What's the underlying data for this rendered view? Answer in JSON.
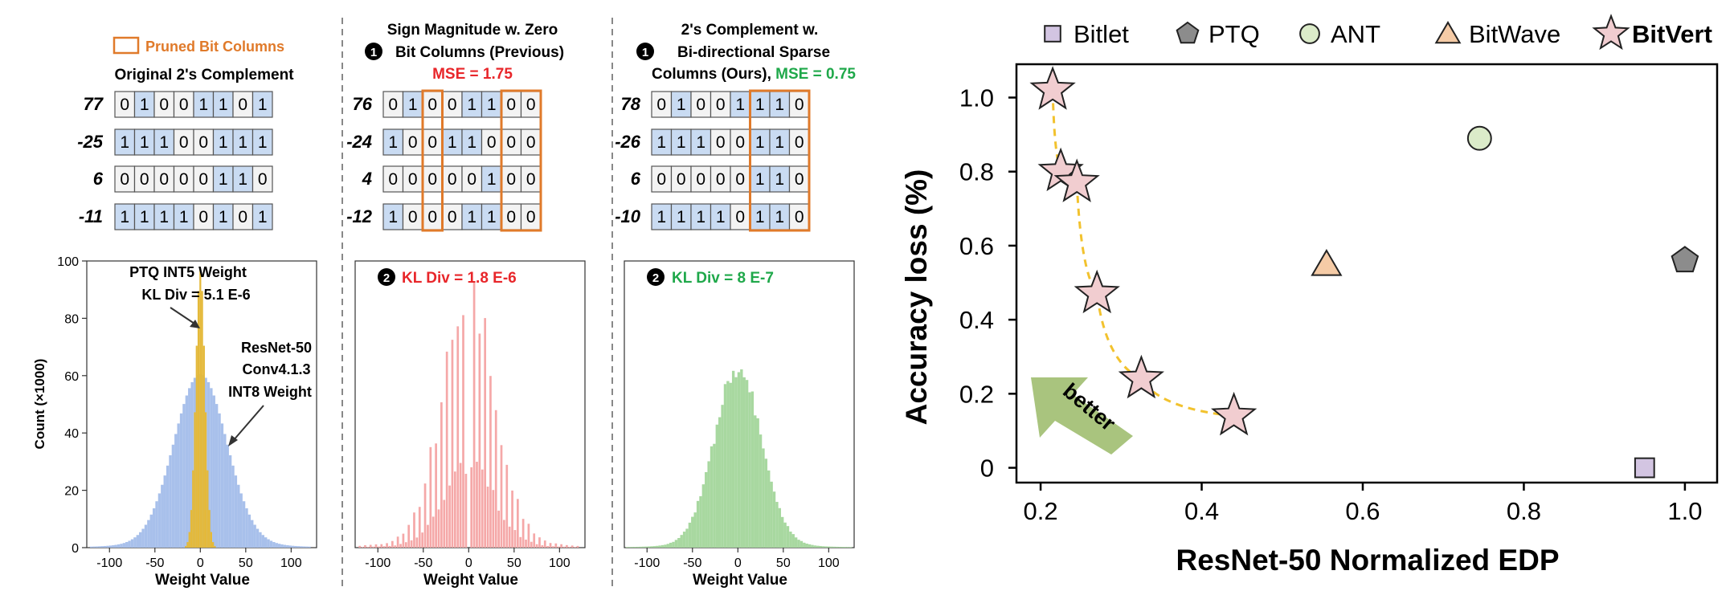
{
  "colors": {
    "blue_cell": "#c9dbf2",
    "white_cell": "#f3f3f3",
    "cell_stroke": "#555555",
    "pruned": "#e07a2a",
    "mse_red": "#e8262a",
    "mse_green": "#1fa84a",
    "hist_blue": "#a8c0eb",
    "hist_yellow": "#e4b93a",
    "hist_red": "#f5a8a8",
    "hist_green": "#a8d8a0",
    "star_fill": "#f1cdd0",
    "pareto": "#f2c22e",
    "better_arrow": "#a9c47e",
    "bitlet": "#d3c5e2",
    "ptq": "#8c8c8c",
    "ant": "#dbebc9",
    "bitwave": "#f5cba6"
  },
  "left": {
    "legend_label": "Pruned Bit Columns",
    "panels": [
      {
        "title_lines": [
          "Original 2's Complement"
        ],
        "mse_label": "",
        "rows": [
          {
            "value": "77",
            "bits": "01001101"
          },
          {
            "value": "-25",
            "bits": "11100111"
          },
          {
            "value": "6",
            "bits": "00000110"
          },
          {
            "value": "-11",
            "bits": "11110101"
          }
        ],
        "pruned_columns": [],
        "hist": {
          "badge": "",
          "kl_label": "",
          "ylabel": "Count (×1000)",
          "xlabel": "Weight Value",
          "yticks": [
            "0",
            "20",
            "40",
            "60",
            "80",
            "100"
          ],
          "xticks": [
            "-100",
            "-50",
            "0",
            "50",
            "100"
          ],
          "annotations": {
            "ptq_line1": "PTQ INT5 Weight",
            "ptq_line2": "KL Div = 5.1 E-6",
            "resnet_line1": "ResNet-50",
            "resnet_line2": "Conv4.1.3",
            "resnet_line3": "INT8 Weight"
          }
        }
      },
      {
        "title_lines": [
          "Sign Magnitude w. Zero",
          "Bit Columns (Previous)"
        ],
        "badge": "1",
        "mse_label": "MSE = 1.75",
        "rows": [
          {
            "value": "76",
            "bits": "01001100"
          },
          {
            "value": "-24",
            "bits": "10011000"
          },
          {
            "value": "4",
            "bits": "00000100"
          },
          {
            "value": "-12",
            "bits": "10001100"
          }
        ],
        "pruned_columns": [
          [
            2,
            2
          ],
          [
            6,
            7
          ]
        ],
        "hist": {
          "badge": "2",
          "kl_label": "KL Div = 1.8 E-6",
          "xlabel": "Weight Value",
          "xticks": [
            "-100",
            "-50",
            "0",
            "50",
            "100"
          ]
        }
      },
      {
        "title_lines": [
          "2's Complement w.",
          "Bi-directional Sparse",
          "Columns (Ours), "
        ],
        "badge": "1",
        "mse_label": "MSE = 0.75",
        "rows": [
          {
            "value": "78",
            "bits": "01001110"
          },
          {
            "value": "-26",
            "bits": "11100110"
          },
          {
            "value": "6",
            "bits": "00000110"
          },
          {
            "value": "-10",
            "bits": "11110110"
          }
        ],
        "pruned_columns": [
          [
            5,
            7
          ]
        ],
        "hist": {
          "badge": "2",
          "kl_label": "KL Div = 8 E-7",
          "xlabel": "Weight Value",
          "xticks": [
            "-100",
            "-50",
            "0",
            "50",
            "100"
          ]
        }
      }
    ]
  },
  "chart_data": {
    "type": "scatter",
    "title": "",
    "xlabel": "ResNet-50 Normalized EDP",
    "ylabel": "Accuracy loss (%)",
    "xlim": [
      0.17,
      1.04
    ],
    "ylim": [
      -0.04,
      1.09
    ],
    "xticks": [
      0.2,
      0.4,
      0.6,
      0.8,
      1.0
    ],
    "xtick_labels": [
      "0.2",
      "0.4",
      "0.6",
      "0.8",
      "1.0"
    ],
    "yticks": [
      0,
      0.2,
      0.4,
      0.6,
      0.8,
      1.0
    ],
    "ytick_labels": [
      "0",
      "0.2",
      "0.4",
      "0.6",
      "0.8",
      "1.0"
    ],
    "grid": false,
    "legend_position": "top",
    "series": [
      {
        "name": "Bitlet",
        "marker": "square",
        "points": [
          {
            "x": 0.95,
            "y": 0.0
          }
        ]
      },
      {
        "name": "PTQ",
        "marker": "pentagon",
        "points": [
          {
            "x": 1.0,
            "y": 0.56
          }
        ]
      },
      {
        "name": "ANT",
        "marker": "circle",
        "points": [
          {
            "x": 0.745,
            "y": 0.89
          }
        ]
      },
      {
        "name": "BitWave",
        "marker": "triangle",
        "points": [
          {
            "x": 0.555,
            "y": 0.55
          }
        ]
      },
      {
        "name": "BitVert",
        "marker": "star",
        "points": [
          {
            "x": 0.215,
            "y": 1.02
          },
          {
            "x": 0.225,
            "y": 0.8
          },
          {
            "x": 0.245,
            "y": 0.77
          },
          {
            "x": 0.27,
            "y": 0.47
          },
          {
            "x": 0.325,
            "y": 0.24
          },
          {
            "x": 0.44,
            "y": 0.14
          }
        ]
      }
    ],
    "annotation": "better"
  }
}
